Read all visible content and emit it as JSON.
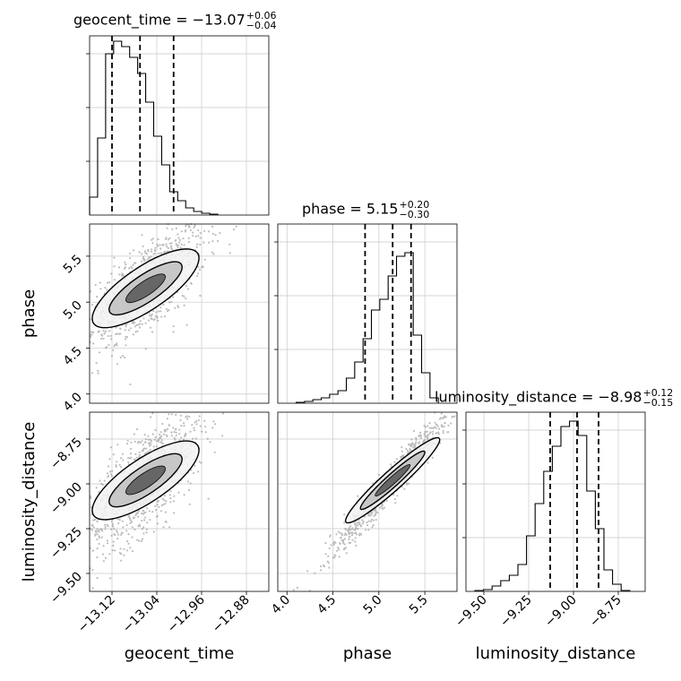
{
  "chart_data": {
    "type": "corner",
    "parameters": [
      {
        "name": "geocent_time",
        "label": "geocent_time",
        "title_value": "−13.07",
        "title_plus": "+0.06",
        "title_minus": "−0.04",
        "range": [
          -13.16,
          -12.84
        ],
        "ticks": [
          -13.12,
          -13.04,
          -12.96,
          -12.88
        ],
        "tick_labels": [
          "−13.12",
          "−13.04",
          "−12.96",
          "−12.88"
        ],
        "quantiles": [
          -13.12,
          -13.07,
          -13.01
        ]
      },
      {
        "name": "phase",
        "label": "phase",
        "title_value": "5.15",
        "title_plus": "+0.20",
        "title_minus": "−0.30",
        "range": [
          3.9,
          5.85
        ],
        "ticks": [
          4.0,
          4.5,
          5.0,
          5.5
        ],
        "tick_labels": [
          "4.0",
          "4.5",
          "5.0",
          "5.5"
        ],
        "quantiles": [
          4.85,
          5.15,
          5.35
        ]
      },
      {
        "name": "luminosity_distance",
        "label": "luminosity_distance",
        "title_value": "−8.98",
        "title_plus": "+0.12",
        "title_minus": "−0.15",
        "range": [
          -9.6,
          -8.6
        ],
        "ticks": [
          -9.5,
          -9.25,
          -9.0,
          -8.75
        ],
        "tick_labels": [
          "−9.50",
          "−9.25",
          "−9.00",
          "−8.75"
        ],
        "quantiles": [
          -9.13,
          -8.98,
          -8.86
        ]
      }
    ],
    "hist_1d": [
      {
        "param": "geocent_time",
        "bin_edges_start": -13.16,
        "bin_width": 0.0143,
        "counts": [
          0.1,
          0.43,
          0.9,
          0.97,
          0.94,
          0.88,
          0.79,
          0.63,
          0.44,
          0.28,
          0.13,
          0.08,
          0.04,
          0.02,
          0.01,
          0.005
        ]
      },
      {
        "param": "phase",
        "bin_edges_start": 4.1,
        "bin_width": 0.091,
        "counts": [
          0.005,
          0.01,
          0.02,
          0.03,
          0.05,
          0.07,
          0.14,
          0.23,
          0.36,
          0.52,
          0.58,
          0.71,
          0.82,
          0.84,
          0.38,
          0.17,
          0.03
        ]
      },
      {
        "param": "luminosity_distance",
        "bin_edges_start": -9.55,
        "bin_width": 0.048,
        "counts": [
          0.005,
          0.01,
          0.03,
          0.06,
          0.09,
          0.15,
          0.31,
          0.49,
          0.67,
          0.81,
          0.92,
          0.95,
          0.87,
          0.56,
          0.35,
          0.12,
          0.04,
          0.005
        ]
      }
    ],
    "axis_labels": {
      "x": [
        "geocent_time",
        "phase",
        "luminosity_distance"
      ],
      "y": [
        "phase",
        "luminosity_distance"
      ]
    },
    "grid": true
  }
}
